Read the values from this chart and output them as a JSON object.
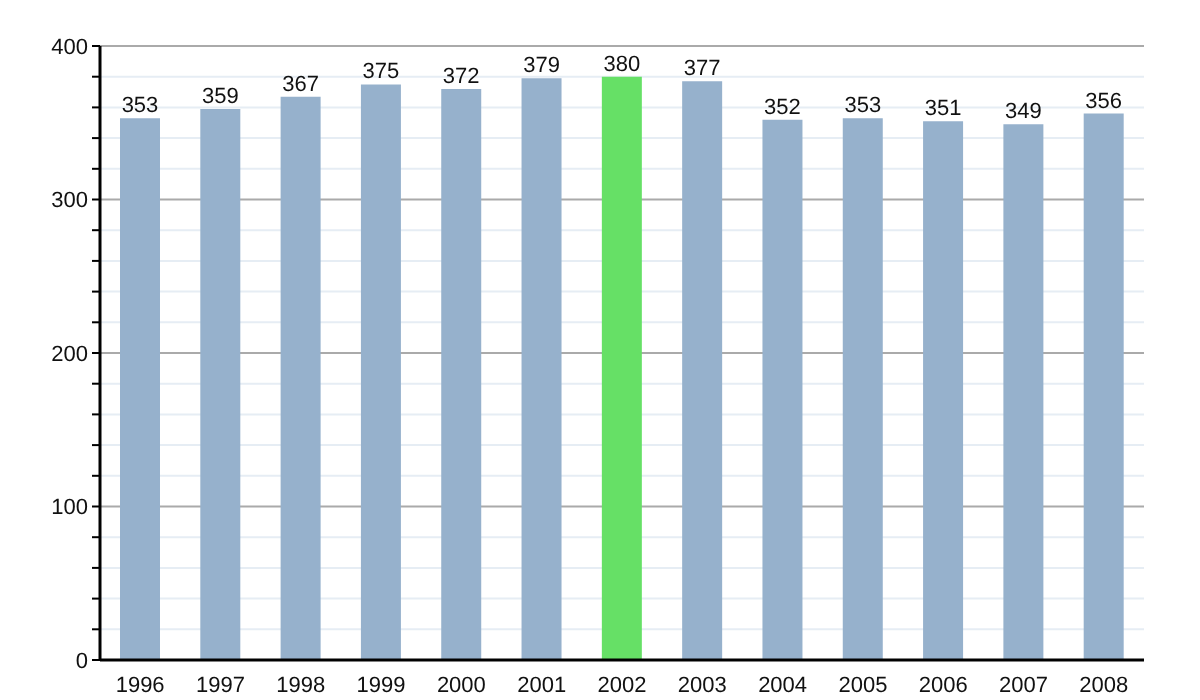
{
  "chart_data": {
    "type": "bar",
    "categories": [
      "1996",
      "1997",
      "1998",
      "1999",
      "2000",
      "2001",
      "2002",
      "2003",
      "2004",
      "2005",
      "2006",
      "2007",
      "2008"
    ],
    "values": [
      353,
      359,
      367,
      375,
      372,
      379,
      380,
      377,
      352,
      353,
      351,
      349,
      356
    ],
    "colors": [
      "#96b1cc",
      "#96b1cc",
      "#96b1cc",
      "#96b1cc",
      "#96b1cc",
      "#96b1cc",
      "#66e066",
      "#96b1cc",
      "#96b1cc",
      "#96b1cc",
      "#96b1cc",
      "#96b1cc",
      "#96b1cc"
    ],
    "ylim": [
      0,
      400
    ],
    "yticks": [
      0,
      {
        "value": 20,
        "label": null
      },
      {
        "value": 40,
        "label": null
      },
      {
        "value": 60,
        "label": null
      },
      {
        "value": 80,
        "label": null
      },
      100,
      {
        "value": 120,
        "label": null
      },
      {
        "value": 140,
        "label": null
      },
      {
        "value": 160,
        "label": null
      },
      {
        "value": 180,
        "label": null
      },
      200,
      {
        "value": 220,
        "label": null
      },
      {
        "value": 240,
        "label": null
      },
      {
        "value": 260,
        "label": null
      },
      {
        "value": 280,
        "label": null
      },
      300,
      {
        "value": 320,
        "label": null
      },
      {
        "value": 340,
        "label": null
      },
      {
        "value": 360,
        "label": null
      },
      {
        "value": 380,
        "label": null
      },
      400
    ],
    "grid": "y",
    "data_labels": true,
    "legend": false
  }
}
